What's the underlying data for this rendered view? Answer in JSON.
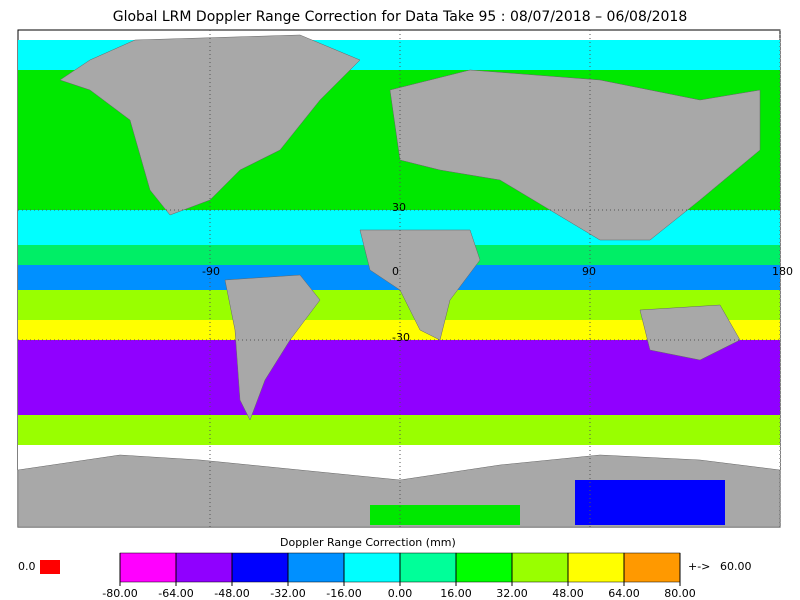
{
  "title": "Global LRM Doppler Range Correction for Data Take 95 : 08/07/2018 – 06/08/2018",
  "map": {
    "lat_labels": [
      "30",
      "-30"
    ],
    "lon_labels": [
      "-90",
      "0",
      "90",
      "180"
    ]
  },
  "colorbar": {
    "label": "Doppler Range Correction (mm)",
    "colors": [
      "#ff00ff",
      "#9000ff",
      "#0000ff",
      "#0090ff",
      "#00ffff",
      "#00ff99",
      "#00ff00",
      "#99ff00",
      "#ffff00",
      "#ff9900"
    ],
    "ticks": [
      {
        "value": -80,
        "label": "-80.00"
      },
      {
        "value": -64,
        "label": "-64.00"
      },
      {
        "value": -48,
        "label": "-48.00"
      },
      {
        "value": -32,
        "label": "-32.00"
      },
      {
        "value": -16,
        "label": "-16.00"
      },
      {
        "value": 0,
        "label": "0.00"
      },
      {
        "value": 16,
        "label": "16.00"
      },
      {
        "value": 32,
        "label": "32.00"
      },
      {
        "value": 48,
        "label": "48.00"
      },
      {
        "value": 64,
        "label": "64.00"
      },
      {
        "value": 80,
        "label": "80.00"
      }
    ]
  },
  "missing": {
    "label": "0.0",
    "color": "#ff0000"
  },
  "overflow": {
    "symbol": "+->",
    "label": "60.00",
    "color": "#ff9900"
  }
}
